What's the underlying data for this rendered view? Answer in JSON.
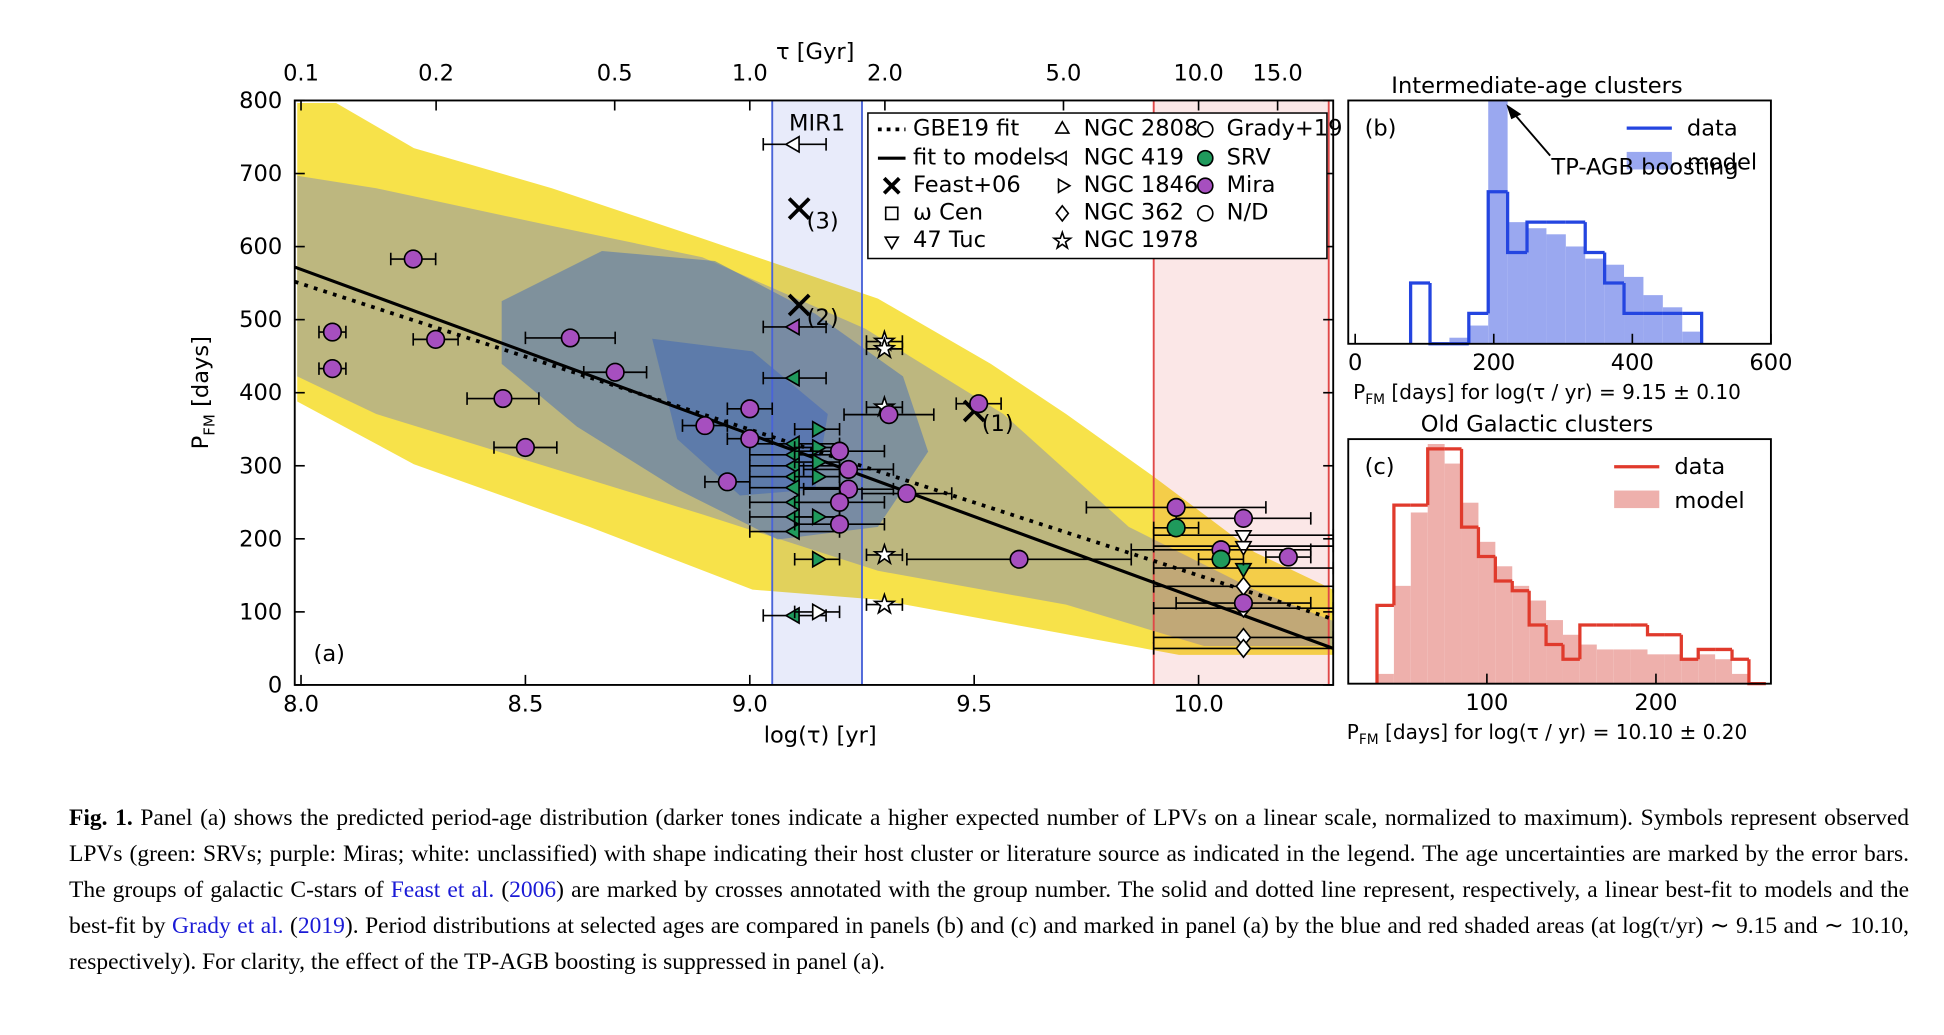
{
  "chart_data": [
    {
      "type": "scatter",
      "xlabel": "log(τ) [yr]",
      "ylabel_parts": [
        "P",
        "FM",
        " [days]"
      ],
      "x2label": "τ [Gyr]",
      "panel_label": "(a)",
      "xlim": [
        7.986,
        10.3
      ],
      "ylim": [
        0,
        800
      ],
      "xticks": [
        {
          "value": 8.0,
          "label": "8.0"
        },
        {
          "value": 8.5,
          "label": "8.5"
        },
        {
          "value": 9.0,
          "label": "9.0"
        },
        {
          "value": 9.5,
          "label": "9.5"
        },
        {
          "value": 10.0,
          "label": "10.0"
        }
      ],
      "yticks": [
        0,
        100,
        200,
        300,
        400,
        500,
        600,
        700,
        800
      ],
      "x2ticks": [
        0.1,
        0.2,
        0.5,
        {
          "value": 1.0,
          "label": "1.0"
        },
        {
          "value": 2.0,
          "label": "2.0"
        },
        {
          "value": 5.0,
          "label": "5.0"
        },
        {
          "value": 10.0,
          "label": "10.0"
        },
        {
          "value": 15.0,
          "label": "15.0"
        }
      ],
      "spans": [
        {
          "xlim": [
            9.05,
            9.25
          ],
          "color": "#4a64d8",
          "label": "MIR1"
        },
        {
          "xlim": [
            9.9,
            10.29
          ],
          "color": "#e04848"
        }
      ],
      "series": [
        {
          "name": "GBE19 fit",
          "linestyle": "dotted",
          "color": "#000000",
          "x": [
            7.986,
            10.3
          ],
          "values": [
            552,
            90
          ]
        },
        {
          "name": "fit to models",
          "linestyle": "solid",
          "color": "#000000",
          "x": [
            7.986,
            10.3
          ],
          "values": [
            572,
            50
          ]
        },
        {
          "name": "Feast+06",
          "marker": "cross",
          "color": "#000000",
          "x": [
            9.5,
            9.11,
            9.11
          ],
          "values": [
            375,
            520,
            652
          ],
          "point_labels": [
            "(1)",
            "(2)",
            "(3)"
          ]
        },
        {
          "name": "ω Cen",
          "marker": "square",
          "x": [],
          "values": [],
          "xerr": [],
          "colors": []
        },
        {
          "name": "47 Tuc",
          "marker": "tri_down",
          "x": [
            10.1,
            10.1,
            10.1
          ],
          "values": [
            205,
            190,
            160
          ],
          "xerr": [
            0.2,
            0.2,
            0.2
          ],
          "colors": [
            "#ffffff",
            "#ffffff",
            "#1f9a5c"
          ]
        },
        {
          "name": "NGC 2808",
          "marker": "tri_up",
          "x": [],
          "values": [],
          "xerr": [],
          "colors": []
        },
        {
          "name": "NGC 419",
          "marker": "tri_left",
          "x": [
            9.1,
            9.1,
            9.1,
            9.1,
            9.1,
            9.1,
            9.1,
            9.1,
            9.1,
            9.1,
            9.1,
            9.1
          ],
          "values": [
            740,
            490,
            420,
            330,
            315,
            300,
            285,
            270,
            250,
            230,
            210,
            95
          ],
          "xerr": [
            0.07,
            0.07,
            0.07,
            0.1,
            0.1,
            0.1,
            0.1,
            0.1,
            0.1,
            0.1,
            0.1,
            0.07
          ],
          "colors": [
            "#ffffff",
            "#a64fbf",
            "#1f9a5c",
            "#1f9a5c",
            "#1f9a5c",
            "#1f9a5c",
            "#1f9a5c",
            "#1f9a5c",
            "#1f9a5c",
            "#1f9a5c",
            "#1f9a5c",
            "#1f9a5c"
          ]
        },
        {
          "name": "NGC 1846",
          "marker": "tri_right",
          "x": [
            9.15,
            9.15,
            9.15,
            9.15,
            9.15,
            9.15,
            9.15
          ],
          "values": [
            350,
            325,
            305,
            285,
            230,
            172,
            100
          ],
          "xerr": [
            0.05,
            0.05,
            0.05,
            0.05,
            0.05,
            0.05,
            0.05
          ],
          "colors": [
            "#1f9a5c",
            "#1f9a5c",
            "#1f9a5c",
            "#1f9a5c",
            "#1f9a5c",
            "#1f9a5c",
            "#ffffff"
          ]
        },
        {
          "name": "NGC 362",
          "marker": "diamond",
          "x": [
            10.1,
            10.1,
            10.1,
            10.1
          ],
          "values": [
            135,
            105,
            65,
            50
          ],
          "xerr": [
            0.2,
            0.2,
            0.2,
            0.2
          ],
          "colors": [
            "#ffffff",
            "#ffffff",
            "#ffffff",
            "#ffffff"
          ]
        },
        {
          "name": "NGC 1978",
          "marker": "star",
          "x": [
            9.3,
            9.3,
            9.3,
            9.3,
            9.3
          ],
          "values": [
            470,
            460,
            380,
            178,
            110
          ],
          "xerr": [
            0.04,
            0.04,
            0.04,
            0.04,
            0.04
          ],
          "colors": [
            "#ffffff",
            "#ffffff",
            "#ffffff",
            "#ffffff",
            "#ffffff"
          ]
        },
        {
          "name": "Grady+19",
          "marker": "circle",
          "x": [
            8.07,
            8.07,
            8.25,
            8.3,
            8.45,
            8.5,
            8.6,
            8.7,
            8.9,
            9.0,
            9.0,
            8.95,
            9.2,
            9.22,
            9.22,
            9.2,
            9.2,
            9.35,
            9.31,
            9.51,
            9.6,
            9.95,
            9.95,
            10.05,
            10.05,
            10.1,
            10.1,
            10.2
          ],
          "values": [
            483,
            433,
            583,
            473,
            392,
            325,
            475,
            428,
            355,
            378,
            337,
            278,
            320,
            295,
            268,
            250,
            220,
            262,
            370,
            385,
            172,
            243,
            215,
            185,
            172,
            228,
            112,
            175
          ],
          "xerr": [
            0.03,
            0.03,
            0.05,
            0.05,
            0.08,
            0.07,
            0.1,
            0.07,
            0.05,
            0.05,
            0.05,
            0.05,
            0.1,
            0.1,
            0.1,
            0.1,
            0.1,
            0.1,
            0.1,
            0.05,
            0.25,
            0.2,
            0.05,
            0.2,
            0.05,
            0.15,
            0.15,
            0.05
          ],
          "colors": [
            "#a64fbf",
            "#a64fbf",
            "#a64fbf",
            "#a64fbf",
            "#a64fbf",
            "#a64fbf",
            "#a64fbf",
            "#a64fbf",
            "#a64fbf",
            "#a64fbf",
            "#a64fbf",
            "#a64fbf",
            "#a64fbf",
            "#a64fbf",
            "#a64fbf",
            "#a64fbf",
            "#a64fbf",
            "#a64fbf",
            "#a64fbf",
            "#a64fbf",
            "#a64fbf",
            "#a64fbf",
            "#1f9a5c",
            "#a64fbf",
            "#1f9a5c",
            "#a64fbf",
            "#a64fbf",
            "#a64fbf"
          ]
        }
      ],
      "classes": [
        {
          "name": "SRV",
          "color": "#1f9a5c"
        },
        {
          "name": "Mira",
          "color": "#a64fbf"
        },
        {
          "name": "N/D",
          "color": "#ffffff"
        }
      ]
    },
    {
      "type": "histogram",
      "title": "Intermediate-age clusters",
      "panel_label": "(b)",
      "xlabel_parts": [
        "P",
        "FM",
        " [days] for log(τ / yr) = 9.15 ± 0.10"
      ],
      "annotation": "TP-AGB boosting",
      "xlim": [
        -10,
        600
      ],
      "ylim": [
        0,
        8
      ],
      "xticks": [
        0,
        200,
        400,
        600
      ],
      "bins": [
        80,
        108,
        136,
        164,
        192,
        220,
        248,
        276,
        304,
        332,
        360,
        388,
        416,
        444,
        472,
        500
      ],
      "series": [
        {
          "name": "data",
          "histtype": "step",
          "color": "#2445e0",
          "values": [
            2,
            0,
            0,
            1,
            5,
            3,
            4,
            4,
            4,
            3,
            2,
            1,
            1,
            1,
            1
          ]
        },
        {
          "name": "model",
          "histtype": "stepfilled",
          "color": "#9aa8f0",
          "values": [
            0,
            0,
            0.2,
            0.6,
            8,
            4,
            3.8,
            3.6,
            3.2,
            2.8,
            2.6,
            2.2,
            1.6,
            1.2,
            0.4
          ]
        }
      ]
    },
    {
      "type": "histogram",
      "title": "Old Galactic clusters",
      "panel_label": "(c)",
      "xlabel_parts": [
        "P",
        "FM",
        " [days] for log(τ / yr) = 10.10 ± 0.20"
      ],
      "xlim": [
        18,
        268
      ],
      "ylim": [
        0,
        10
      ],
      "xticks": [
        100,
        200
      ],
      "bins": [
        35,
        45,
        55,
        65,
        75,
        85,
        95,
        105,
        115,
        125,
        135,
        145,
        155,
        165,
        175,
        185,
        195,
        205,
        215,
        225,
        235,
        245,
        255,
        265
      ],
      "series": [
        {
          "name": "data",
          "histtype": "step",
          "color": "#e03a2c",
          "values": [
            3.2,
            7.3,
            7.3,
            9.6,
            9.6,
            6.4,
            5.2,
            4.2,
            3.8,
            2.4,
            1.6,
            1.0,
            2.4,
            2.4,
            2.4,
            2.4,
            2.0,
            2.0,
            1.0,
            1.4,
            1.4,
            1.0,
            0
          ]
        },
        {
          "name": "model",
          "histtype": "stepfilled",
          "color": "#eeb0ac",
          "values": [
            0.4,
            4,
            7,
            9.8,
            9,
            7.4,
            5.8,
            4.8,
            4,
            3.4,
            2.6,
            2,
            1.6,
            1.4,
            1.4,
            1.4,
            1.2,
            1.2,
            1.0,
            1.2,
            1.0,
            0.4,
            0
          ]
        }
      ]
    }
  ],
  "caption": {
    "label": "Fig. 1.",
    "parts": [
      {
        "text": "Panel (a) shows the predicted period-age distribution (darker tones indicate a higher expected number of LPVs on a linear scale, normalized to maximum). Symbols represent observed LPVs (green: SRVs; purple: Miras; white: unclassified) with shape indicating their host cluster or literature source as indicated in the legend. The age uncertainties are marked by the error bars. The groups of galactic C-stars of "
      },
      {
        "text": "Feast et al.",
        "link": true
      },
      {
        "text": " ("
      },
      {
        "text": "2006",
        "link": true
      },
      {
        "text": ") are marked by crosses annotated with the group number. The solid and dotted line represent, respectively, a linear best-fit to models and the best-fit by "
      },
      {
        "text": "Grady et al.",
        "link": true
      },
      {
        "text": " ("
      },
      {
        "text": "2019",
        "link": true
      },
      {
        "text": "). Period distributions at selected ages are compared in panels (b) and (c) and marked in panel (a) by the blue and red shaded areas (at log(τ/yr) ∼ 9.15 and ∼ 10.10, respectively). For clarity, the effect of the TP-AGB boosting is suppressed in panel (a)."
      }
    ]
  }
}
